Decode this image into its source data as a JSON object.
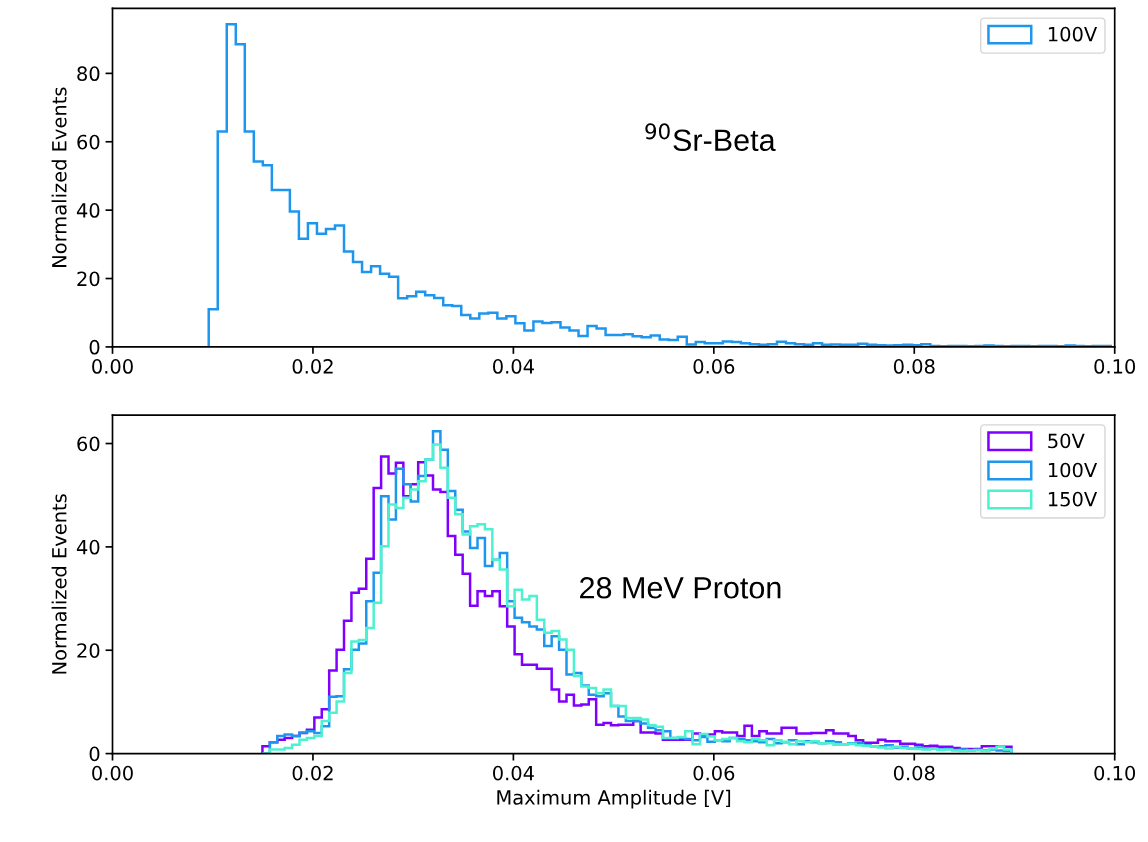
{
  "chart_data": [
    {
      "type": "histogram",
      "ylabel": "Normalized Events",
      "annotations": [
        "$^{90}$Sr-Beta"
      ],
      "xlim": [
        0,
        0.1
      ],
      "xticks": [
        {
          "value": 0,
          "label": "0.00"
        },
        {
          "value": 0.02,
          "label": "0.02"
        },
        {
          "value": 0.04,
          "label": "0.04"
        },
        {
          "value": 0.06,
          "label": "0.06"
        },
        {
          "value": 0.08,
          "label": "0.08"
        },
        {
          "value": 0.1,
          "label": "0.10"
        }
      ],
      "ylim": [
        0,
        99
      ],
      "yticks": [
        0,
        20,
        40,
        60,
        80
      ],
      "legend": "top right",
      "grid": false,
      "bins": [
        0.0096,
        0.0105,
        0.0114,
        0.0123,
        0.0132,
        0.0141,
        0.015,
        0.0159,
        0.0168,
        0.0177,
        0.0186,
        0.0195,
        0.0204,
        0.0213,
        0.0222,
        0.0231,
        0.024,
        0.0249,
        0.0258,
        0.0267,
        0.0276,
        0.0285,
        0.0294,
        0.0303,
        0.0312,
        0.0321,
        0.033,
        0.0339,
        0.0348,
        0.0357,
        0.0366,
        0.0375,
        0.0384,
        0.0393,
        0.0402,
        0.0411,
        0.042,
        0.0429,
        0.0438,
        0.0447,
        0.0456,
        0.0465,
        0.0474,
        0.0483,
        0.0492,
        0.0501,
        0.051,
        0.0519,
        0.0528,
        0.0537,
        0.0546,
        0.0555,
        0.0564,
        0.0573,
        0.0582,
        0.0591,
        0.06,
        0.0609,
        0.0618,
        0.0627,
        0.0636,
        0.0645,
        0.0654,
        0.0663,
        0.0672,
        0.0681,
        0.069,
        0.0699,
        0.0708,
        0.0717,
        0.0726,
        0.0735,
        0.0744,
        0.0753,
        0.0762,
        0.0771,
        0.078,
        0.0789,
        0.0798,
        0.0807,
        0.0816,
        0.0825,
        0.0834,
        0.0843,
        0.0852,
        0.0861,
        0.087,
        0.0879,
        0.0888,
        0.0897,
        0.0906,
        0.0915,
        0.0924,
        0.0933,
        0.0942,
        0.0951,
        0.096,
        0.0969,
        0.0978,
        0.0987,
        0.0996
      ],
      "series": [
        {
          "name": "100V",
          "color": "#1f96ee",
          "values": [
            11,
            63,
            94.4,
            88.5,
            63,
            54.2,
            53.1,
            45.9,
            45.9,
            39.6,
            31.6,
            36.2,
            33.1,
            34.5,
            35.5,
            27.9,
            24.8,
            21.9,
            23.6,
            21.4,
            20.5,
            14.2,
            14.8,
            16.1,
            15.1,
            14.3,
            12.2,
            12,
            9.3,
            8.3,
            9.8,
            10,
            8.3,
            9,
            6.9,
            4.8,
            7.4,
            7,
            7.2,
            5.7,
            4.8,
            3.2,
            6.1,
            5.4,
            3.5,
            3.5,
            3.7,
            3.1,
            2.8,
            3.3,
            2.2,
            2.0,
            3.0,
            0.7,
            1.4,
            1.1,
            1.1,
            1.6,
            1.4,
            1.1,
            0.8,
            0.6,
            0.8,
            1.5,
            1.1,
            0.8,
            0.6,
            1.1,
            0.6,
            0.7,
            0.6,
            0.6,
            0.9,
            0.6,
            0.5,
            0.4,
            0.5,
            0.6,
            0.5,
            0.8,
            0.3,
            0.2,
            0.3,
            0.3,
            0.2,
            0.3,
            0.4,
            0.3,
            0.2,
            0.3,
            0.3,
            0.2,
            0.3,
            0.3,
            0.2,
            0.4,
            0.3,
            0.2,
            0.3,
            0.3
          ]
        }
      ]
    },
    {
      "type": "histogram",
      "xlabel": "Maximum Amplitude [V]",
      "ylabel": "Normalized Events",
      "annotations": [
        "28 MeV Proton"
      ],
      "xlim": [
        0,
        0.1
      ],
      "xticks": [
        {
          "value": 0,
          "label": "0.00"
        },
        {
          "value": 0.02,
          "label": "0.02"
        },
        {
          "value": 0.04,
          "label": "0.04"
        },
        {
          "value": 0.06,
          "label": "0.06"
        },
        {
          "value": 0.08,
          "label": "0.08"
        },
        {
          "value": 0.1,
          "label": "0.10"
        }
      ],
      "ylim": [
        0,
        65.5
      ],
      "yticks": [
        0,
        20,
        40,
        60
      ],
      "legend": "top right",
      "grid": false,
      "bins": [
        0.01496,
        0.0157,
        0.01644,
        0.01718,
        0.01792,
        0.01866,
        0.0194,
        0.02014,
        0.02088,
        0.02162,
        0.02236,
        0.0231,
        0.02384,
        0.02458,
        0.02532,
        0.02606,
        0.0268,
        0.02754,
        0.02828,
        0.02902,
        0.02976,
        0.0305,
        0.03124,
        0.03198,
        0.03272,
        0.03346,
        0.0342,
        0.03494,
        0.03568,
        0.03642,
        0.03716,
        0.0379,
        0.03864,
        0.03938,
        0.04012,
        0.04086,
        0.0416,
        0.04234,
        0.04308,
        0.04382,
        0.04456,
        0.0453,
        0.04604,
        0.04678,
        0.04752,
        0.04826,
        0.049,
        0.04974,
        0.05048,
        0.05122,
        0.05196,
        0.0527,
        0.05344,
        0.05418,
        0.05492,
        0.05566,
        0.0564,
        0.05714,
        0.05788,
        0.05862,
        0.05936,
        0.0601,
        0.06084,
        0.06158,
        0.06232,
        0.06306,
        0.0638,
        0.06454,
        0.06528,
        0.06602,
        0.06676,
        0.0675,
        0.06824,
        0.06898,
        0.06972,
        0.07046,
        0.0712,
        0.07194,
        0.07268,
        0.07342,
        0.07416,
        0.0749,
        0.07564,
        0.07638,
        0.07712,
        0.07786,
        0.0786,
        0.07934,
        0.08008,
        0.08082,
        0.08156,
        0.0823,
        0.08304,
        0.08378,
        0.08452,
        0.08526,
        0.086,
        0.08674,
        0.08748,
        0.08822,
        0.08896,
        0.0897
      ],
      "series": [
        {
          "name": "50V",
          "color": "#8000ff",
          "values": [
            1.4,
            2.2,
            2.7,
            3.0,
            3.4,
            4.0,
            4.6,
            7.0,
            8.6,
            16.1,
            20.1,
            25.7,
            31.1,
            31.9,
            37.7,
            51.4,
            57.5,
            54.2,
            56.3,
            49.8,
            52.1,
            56.4,
            53.8,
            51.1,
            50.6,
            42.1,
            38.5,
            34.8,
            28.6,
            31.4,
            30.5,
            31.4,
            28.5,
            24.6,
            19.2,
            17.2,
            17.2,
            16.4,
            16.4,
            12.4,
            10.1,
            11.4,
            9.3,
            9.5,
            10.5,
            5.6,
            5.9,
            5.5,
            5.6,
            5.6,
            6.3,
            4.1,
            4.1,
            3.9,
            2.7,
            2.7,
            2.7,
            2.7,
            3.9,
            3.7,
            3.7,
            4.3,
            4.1,
            4.1,
            3.4,
            5.4,
            3.4,
            4.3,
            3.9,
            3.9,
            5.0,
            5.0,
            3.9,
            3.9,
            4.0,
            4.0,
            4.5,
            3.9,
            3.9,
            3.4,
            2.6,
            2.1,
            2.1,
            2.7,
            2.4,
            2.4,
            1.9,
            1.9,
            1.7,
            1.4,
            1.5,
            1.3,
            1.3,
            1.1,
            0.9,
            0.9,
            0.9,
            1.4,
            1.4,
            1.3,
            1.3
          ]
        },
        {
          "name": "100V",
          "color": "#1f96ee",
          "values": [
            0,
            2.2,
            3.4,
            3.7,
            3.4,
            4.1,
            4.3,
            4.0,
            5.3,
            11.0,
            11.1,
            16.3,
            20.1,
            21.3,
            29.5,
            35.0,
            49.8,
            45.3,
            55.1,
            52.1,
            48.8,
            53.7,
            56.9,
            62.4,
            58.8,
            50.8,
            47.2,
            43.0,
            39.8,
            41.7,
            36.3,
            37.5,
            38.8,
            29.5,
            26.3,
            25.4,
            24.6,
            24.0,
            20.8,
            22.7,
            20.1,
            15.3,
            15.6,
            13.2,
            11.4,
            11.1,
            11.7,
            9.2,
            7.2,
            6.3,
            6.3,
            5.8,
            5.0,
            4.5,
            4.3,
            3.0,
            3.0,
            2.8,
            2.6,
            3.2,
            2.3,
            2.6,
            2.4,
            3.0,
            2.8,
            2.6,
            2.4,
            2.2,
            2.8,
            2.0,
            2.2,
            2.6,
            1.8,
            2.4,
            2.2,
            2.0,
            2.4,
            2.2,
            1.8,
            2.0,
            2.0,
            1.6,
            1.4,
            1.4,
            1.6,
            1.2,
            1.3,
            1.0,
            1.2,
            0.9,
            1.0,
            0.8,
            0.9,
            0.7,
            0.8,
            0.6,
            0.7,
            0.6,
            0.8,
            0.6,
            0.5
          ]
        },
        {
          "name": "150V",
          "color": "#4cf2cf",
          "values": [
            0,
            0.8,
            0.8,
            1.1,
            1.7,
            2.7,
            3.0,
            3.4,
            6.3,
            7.9,
            10.1,
            15.6,
            21.7,
            22.0,
            24.3,
            29.2,
            40.1,
            48.2,
            47.5,
            49.5,
            51.1,
            52.7,
            56.9,
            59.8,
            55.3,
            49.5,
            46.3,
            42.4,
            44.0,
            44.4,
            43.4,
            37.5,
            35.6,
            28.5,
            31.7,
            29.8,
            30.5,
            25.9,
            23.4,
            23.7,
            22.1,
            20.1,
            15.0,
            13.0,
            12.7,
            11.7,
            12.4,
            9.2,
            9.2,
            6.9,
            6.9,
            6.6,
            5.5,
            5.2,
            3.0,
            3.0,
            3.2,
            4.3,
            1.8,
            3.8,
            3.3,
            2.6,
            2.8,
            3.0,
            2.4,
            2.2,
            2.8,
            2.6,
            1.6,
            2.6,
            2.3,
            1.8,
            2.4,
            2.2,
            2.4,
            2.0,
            2.0,
            1.7,
            1.8,
            1.9,
            1.6,
            1.5,
            1.4,
            1.2,
            1.0,
            1.3,
            1.1,
            1.0,
            0.9,
            0.8,
            0.9,
            0.7,
            0.8,
            0.6,
            0.5,
            0.6,
            0.7,
            0.5,
            1.0,
            1.3,
            0.8
          ]
        }
      ]
    }
  ]
}
